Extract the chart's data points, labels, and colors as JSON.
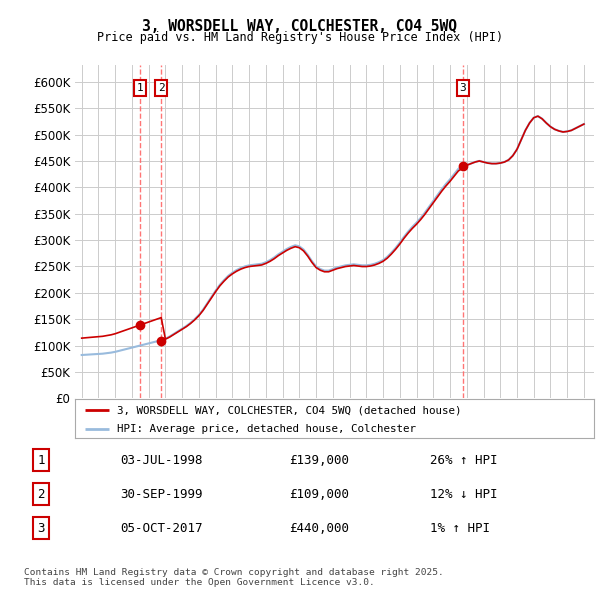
{
  "title": "3, WORSDELL WAY, COLCHESTER, CO4 5WQ",
  "subtitle": "Price paid vs. HM Land Registry's House Price Index (HPI)",
  "red_label": "3, WORSDELL WAY, COLCHESTER, CO4 5WQ (detached house)",
  "blue_label": "HPI: Average price, detached house, Colchester",
  "table_rows": [
    {
      "num": "1",
      "date": "03-JUL-1998",
      "price": "£139,000",
      "pct": "26% ↑ HPI"
    },
    {
      "num": "2",
      "date": "30-SEP-1999",
      "price": "£109,000",
      "pct": "12% ↓ HPI"
    },
    {
      "num": "3",
      "date": "05-OCT-2017",
      "price": "£440,000",
      "pct": "1% ↑ HPI"
    }
  ],
  "sale_years": [
    1998.5,
    1999.75,
    2017.77
  ],
  "sale_prices": [
    139000,
    109000,
    440000
  ],
  "sale_nums": [
    "1",
    "2",
    "3"
  ],
  "footnote": "Contains HM Land Registry data © Crown copyright and database right 2025.\nThis data is licensed under the Open Government Licence v3.0.",
  "yticks": [
    0,
    50000,
    100000,
    150000,
    200000,
    250000,
    300000,
    350000,
    400000,
    450000,
    500000,
    550000,
    600000
  ],
  "background_color": "#ffffff",
  "grid_color": "#cccccc",
  "red_color": "#cc0000",
  "blue_color": "#99bbdd",
  "vline_color": "#ff6666",
  "sale_box_color": "#cc0000"
}
